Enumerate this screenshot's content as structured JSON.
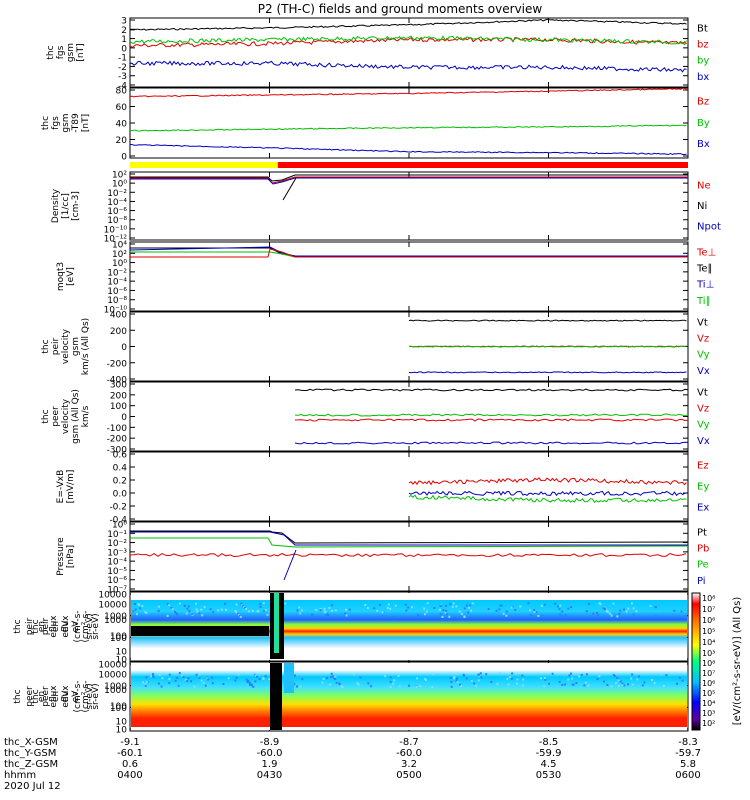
{
  "title": "P2 (TH-C) fields and ground moments overview",
  "panels": [
    {
      "id": "fgs",
      "ylabel": [
        "thc",
        "fgs",
        "gsm",
        "[nT]"
      ],
      "ylim": [
        -4,
        3
      ],
      "yticks": [
        "3",
        "2",
        "1",
        "0",
        "-1",
        "-2",
        "-3",
        "-4"
      ],
      "legend": [
        {
          "label": "Bt",
          "color": "#000000"
        },
        {
          "label": "bz",
          "color": "#e00000"
        },
        {
          "label": "by",
          "color": "#00c000"
        },
        {
          "label": "bx",
          "color": "#0000c0"
        }
      ]
    },
    {
      "id": "fgs_t89",
      "ylabel": [
        "thc",
        "fgs",
        "gsm",
        "-T89",
        "[nT]"
      ],
      "ylim": [
        -10,
        80
      ],
      "yticks": [
        "80",
        "60",
        "40",
        "20",
        "0"
      ],
      "legend": [
        {
          "label": "Bz",
          "color": "#e00000"
        },
        {
          "label": "By",
          "color": "#00c000"
        },
        {
          "label": "Bx",
          "color": "#0000c0"
        }
      ]
    },
    {
      "id": "density",
      "ylabel": [
        "Density",
        "[1/cc]",
        "[cm-3]"
      ],
      "ylim": [
        -12,
        2
      ],
      "log": true,
      "yticks": [
        "10²",
        "10⁰",
        "10⁻²",
        "10⁻⁴",
        "10⁻⁶",
        "10⁻⁸",
        "10⁻¹⁰",
        "10⁻¹²"
      ],
      "legend": [
        {
          "label": "Ne",
          "color": "#e00000"
        },
        {
          "label": "Ni",
          "color": "#000000"
        },
        {
          "label": "Npot",
          "color": "#0000c0"
        }
      ]
    },
    {
      "id": "temp",
      "ylabel": [
        "moqt3",
        "[eV]"
      ],
      "ylim": [
        -10,
        4
      ],
      "log": true,
      "yticks": [
        "10⁴",
        "10²",
        "10⁰",
        "10⁻²",
        "10⁻⁴",
        "10⁻⁶",
        "10⁻⁸",
        "10⁻¹⁰"
      ],
      "legend": [
        {
          "label": "Te⊥",
          "color": "#e00000"
        },
        {
          "label": "Te∥",
          "color": "#000000"
        },
        {
          "label": "Ti⊥",
          "color": "#0000c0"
        },
        {
          "label": "Ti∥",
          "color": "#00c000"
        }
      ]
    },
    {
      "id": "peir_v",
      "ylabel": [
        "thc",
        "peir",
        "velocity",
        "gsm",
        "km/s (All Qs)"
      ],
      "ylim": [
        -400,
        400
      ],
      "yticks": [
        "400",
        "200",
        "0",
        "-200",
        "-400"
      ],
      "legend": [
        {
          "label": "Vt",
          "color": "#000000"
        },
        {
          "label": "Vz",
          "color": "#e00000"
        },
        {
          "label": "Vy",
          "color": "#00c000"
        },
        {
          "label": "Vx",
          "color": "#0000c0"
        }
      ]
    },
    {
      "id": "peer_v",
      "ylabel": [
        "thc",
        "peer",
        "velocity",
        "gsm (All Qs)",
        "km/s"
      ],
      "ylim": [
        -300,
        300
      ],
      "yticks": [
        "300",
        "200",
        "100",
        "0",
        "-100",
        "-200",
        "-300"
      ],
      "legend": [
        {
          "label": "Vt",
          "color": "#000000"
        },
        {
          "label": "Vz",
          "color": "#e00000"
        },
        {
          "label": "Vy",
          "color": "#00c000"
        },
        {
          "label": "Vx",
          "color": "#0000c0"
        }
      ]
    },
    {
      "id": "efield",
      "ylabel": [
        "E=-VxB",
        "[mV/m]"
      ],
      "ylim": [
        -0.4,
        0.6
      ],
      "yticks": [
        "0.6",
        "0.4",
        "0.2",
        "0.0",
        "-0.2",
        "-0.4"
      ],
      "legend": [
        {
          "label": "Ez",
          "color": "#e00000"
        },
        {
          "label": "Ey",
          "color": "#00c000"
        },
        {
          "label": "Ex",
          "color": "#0000c0"
        }
      ]
    },
    {
      "id": "pressure",
      "ylabel": [
        "Pressure",
        "[nPa]"
      ],
      "ylim": [
        -7,
        1
      ],
      "log": true,
      "yticks": [
        "10⁰",
        "10⁻¹",
        "10⁻²",
        "10⁻³",
        "10⁻⁴",
        "10⁻⁵",
        "10⁻⁶",
        "10⁻⁷"
      ],
      "legend": [
        {
          "label": "Pt",
          "color": "#000000"
        },
        {
          "label": "Pb",
          "color": "#e00000"
        },
        {
          "label": "Pe",
          "color": "#00c000"
        },
        {
          "label": "Pi",
          "color": "#0000c0"
        }
      ]
    },
    {
      "id": "peir_spec",
      "ylabel": [
        "thc",
        "peir",
        "en",
        "eflux",
        "eV",
        "(cm²-s-",
        "sr-eV)"
      ],
      "log": true,
      "yticks": [
        "10000",
        "1000",
        "100",
        "10"
      ]
    },
    {
      "id": "peer_spec",
      "ylabel": [
        "thc",
        "peer",
        "en",
        "eflux",
        "eV",
        "(cm²-s-",
        "sr-eV)"
      ],
      "log": true,
      "yticks": [
        "10000",
        "1000",
        "100",
        "10"
      ]
    }
  ],
  "colorbar": {
    "label": "[eV/(cm²-s-sr-eV)] (All Qs)",
    "ticks_top": [
      "10⁸",
      "10⁷",
      "10⁶",
      "10⁵",
      "10⁴",
      "10³"
    ],
    "ticks_bottom": [
      "10⁸",
      "10⁷",
      "10⁶",
      "10⁵",
      "10⁴",
      "10³",
      "10²"
    ]
  },
  "mode_bar": {
    "colors": [
      "#ffff00",
      "#ff0000"
    ],
    "split_fraction": 0.265
  },
  "footer": {
    "rows": [
      "thc_X-GSM",
      "thc_Y-GSM",
      "thc_Z-GSM",
      "hhmm",
      "2020 Jul 12"
    ],
    "columns": [
      {
        "vals": [
          "-9.1",
          "-60.1",
          "0.6",
          "0400"
        ]
      },
      {
        "vals": [
          "-8.9",
          "-60.0",
          "1.9",
          "0430"
        ]
      },
      {
        "vals": [
          "-8.7",
          "-60.0",
          "3.2",
          "0500"
        ]
      },
      {
        "vals": [
          "-8.5",
          "-59.9",
          "4.5",
          "0530"
        ]
      },
      {
        "vals": [
          "-8.3",
          "-59.7",
          "5.8",
          "0600"
        ]
      }
    ]
  },
  "chart_data": {
    "type": "line",
    "title": "P2 (TH-C) fields and ground moments overview",
    "x": [
      "0400",
      "0430",
      "0500",
      "0530",
      "0600"
    ],
    "xlabel": "hhmm",
    "series": [
      {
        "name": "Bt",
        "panel": "fgs",
        "values": [
          1.8,
          2.0,
          2.3,
          2.8,
          2.4
        ]
      },
      {
        "name": "bz",
        "panel": "fgs",
        "values": [
          0.2,
          0.4,
          0.8,
          0.8,
          0.4
        ]
      },
      {
        "name": "by",
        "panel": "fgs",
        "values": [
          0.6,
          0.8,
          1.0,
          0.8,
          0.5
        ]
      },
      {
        "name": "bx",
        "panel": "fgs",
        "values": [
          -1.6,
          -1.6,
          -2.0,
          -2.0,
          -2.3
        ]
      },
      {
        "name": "Bz",
        "panel": "fgs_t89",
        "values": [
          69,
          71,
          73,
          76,
          79
        ]
      },
      {
        "name": "By",
        "panel": "fgs_t89",
        "values": [
          25,
          27,
          29,
          30,
          32
        ]
      },
      {
        "name": "Bx",
        "panel": "fgs_t89",
        "values": [
          7,
          3,
          -2,
          -3,
          -5
        ]
      },
      {
        "name": "Vt",
        "panel": "peir_v",
        "values": [
          null,
          null,
          300,
          300,
          300
        ]
      },
      {
        "name": "Vz",
        "panel": "peir_v",
        "values": [
          null,
          null,
          0,
          0,
          0
        ]
      },
      {
        "name": "Vy",
        "panel": "peir_v",
        "values": [
          null,
          null,
          0,
          0,
          0
        ]
      },
      {
        "name": "Vx",
        "panel": "peir_v",
        "values": [
          null,
          null,
          -300,
          -300,
          -300
        ]
      },
      {
        "name": "Ez",
        "panel": "efield",
        "values": [
          null,
          null,
          0.15,
          0.2,
          0.15
        ]
      },
      {
        "name": "Ey",
        "panel": "efield",
        "values": [
          null,
          null,
          -0.05,
          -0.1,
          -0.1
        ]
      },
      {
        "name": "Ex",
        "panel": "efield",
        "values": [
          null,
          null,
          0.0,
          0.0,
          0.0
        ]
      }
    ],
    "xlim": [
      "0400",
      "0600"
    ]
  }
}
